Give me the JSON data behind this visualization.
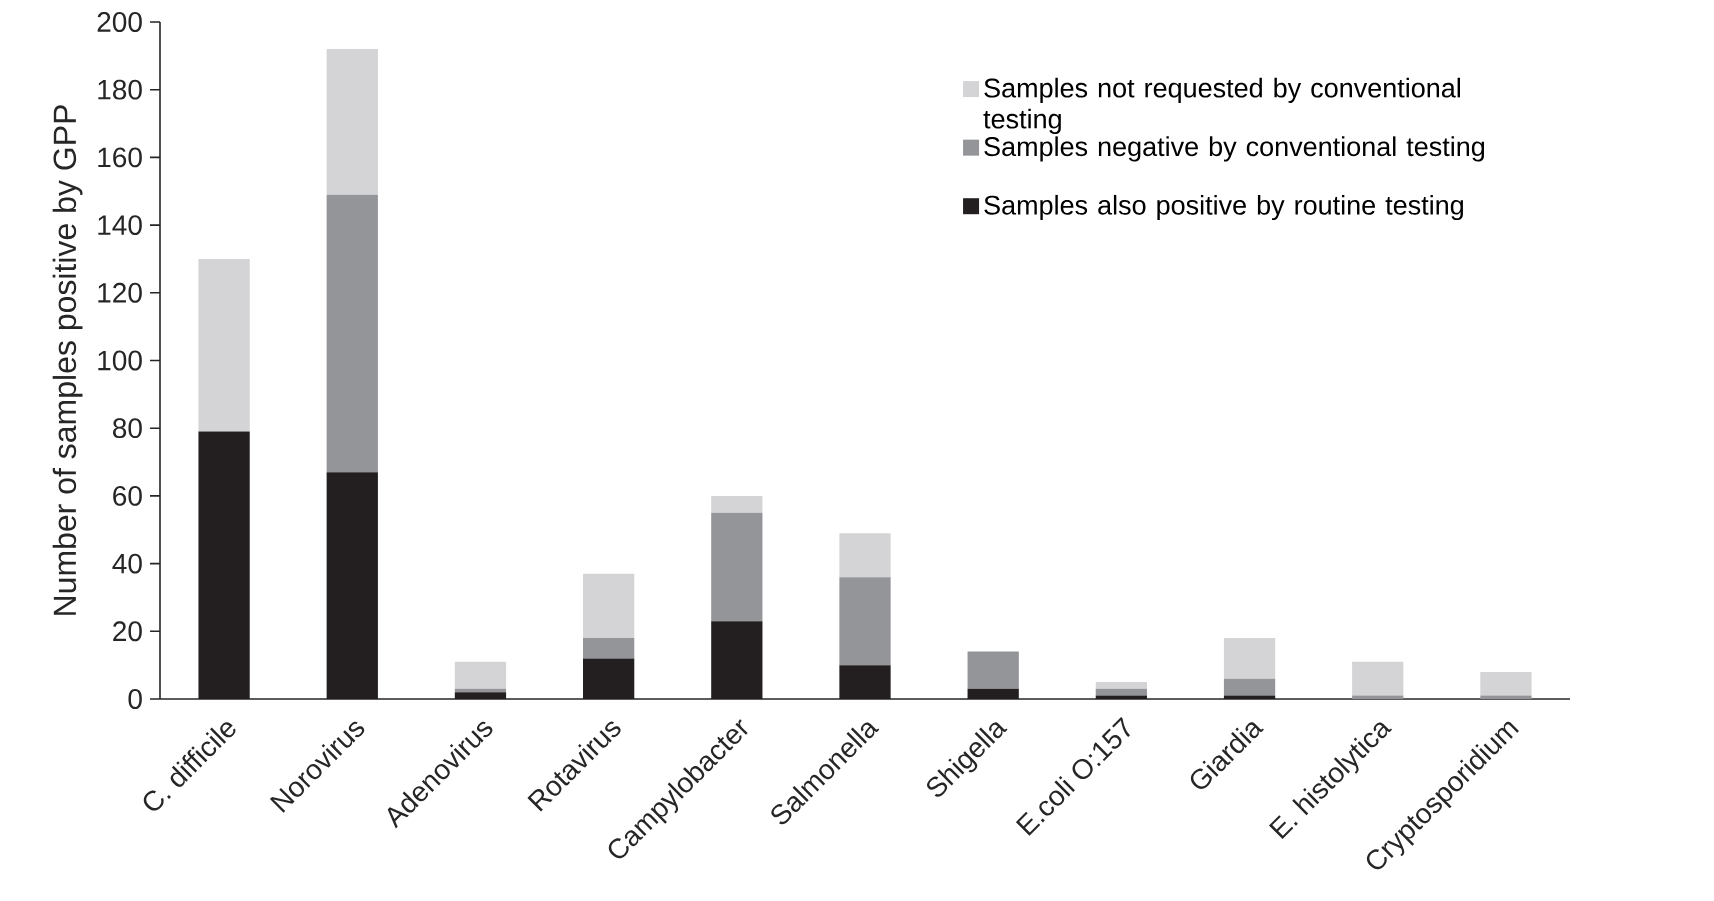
{
  "chart_data": {
    "type": "bar",
    "stacked": true,
    "ylabel": "Number of samples positive by GPP",
    "categories": [
      "C. difficile",
      "Norovirus",
      "Adenovirus",
      "Rotavirus",
      "Campylobacter",
      "Salmonella",
      "Shigella",
      "E.coli O:157",
      "Giardia",
      "E. histolytica",
      "Cryptosporidium"
    ],
    "series": [
      {
        "name": "Samples also positive by routine testing",
        "color": "#231f20",
        "values": [
          79,
          67,
          2,
          12,
          23,
          10,
          3,
          1,
          1,
          0,
          0
        ]
      },
      {
        "name": "Samples negative by conventional testing",
        "color": "#939598",
        "values": [
          0,
          82,
          1,
          6,
          32,
          26,
          11,
          2,
          5,
          1,
          1
        ]
      },
      {
        "name": "Samples not requested by conventional testing",
        "color": "#d4d4d6",
        "values": [
          51,
          43,
          8,
          19,
          5,
          13,
          0,
          2,
          12,
          10,
          7
        ]
      }
    ],
    "ylim": [
      0,
      200
    ],
    "yticks": [
      0,
      20,
      40,
      60,
      80,
      100,
      120,
      140,
      160,
      180,
      200
    ],
    "grid": false,
    "legend": "top right"
  }
}
